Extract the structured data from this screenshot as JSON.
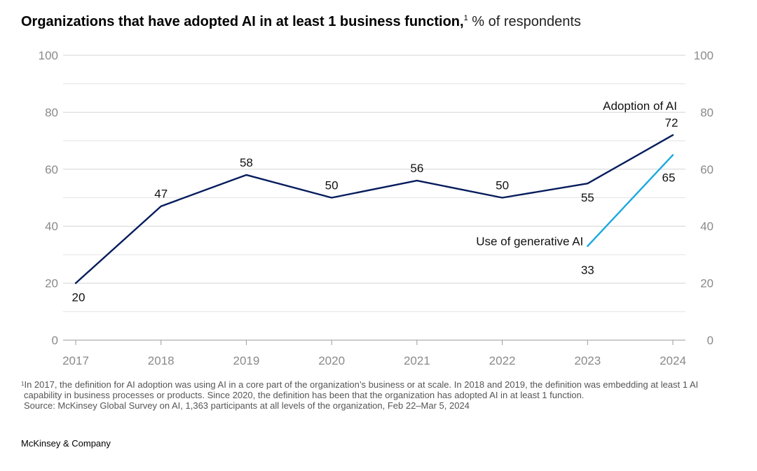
{
  "title": {
    "main": "Organizations that have adopted AI in at least 1 business function,",
    "footnote_marker": "1",
    "unit": "% of respondents"
  },
  "chart_data": {
    "type": "line",
    "x": [
      "2017",
      "2018",
      "2019",
      "2020",
      "2021",
      "2022",
      "2023",
      "2024"
    ],
    "ylim": [
      0,
      100
    ],
    "yticks": [
      0,
      20,
      40,
      60,
      80,
      100
    ],
    "y_axis_both_sides": true,
    "grid": true,
    "series": [
      {
        "name": "Adoption of AI",
        "color": "#051c5c",
        "x": [
          "2017",
          "2018",
          "2019",
          "2020",
          "2021",
          "2022",
          "2023",
          "2024"
        ],
        "values": [
          20,
          47,
          58,
          50,
          56,
          50,
          55,
          72
        ]
      },
      {
        "name": "Use of generative AI",
        "color": "#1aa8e0",
        "x": [
          "2023",
          "2024"
        ],
        "values": [
          33,
          65
        ]
      }
    ]
  },
  "footnote": {
    "marker": "1",
    "text_1": "In 2017, the definition for AI adoption was using AI in a core part of the organization’s business or at scale. In 2018 and 2019, the definition was embedding at least 1 AI capability in business processes or products. Since 2020, the definition has been that the organization has adopted AI in at least 1 function.",
    "source": "Source: McKinsey Global Survey on AI, 1,363 participants at all levels of the organization, Feb 22–Mar 5, 2024"
  },
  "brand": "McKinsey & Company"
}
